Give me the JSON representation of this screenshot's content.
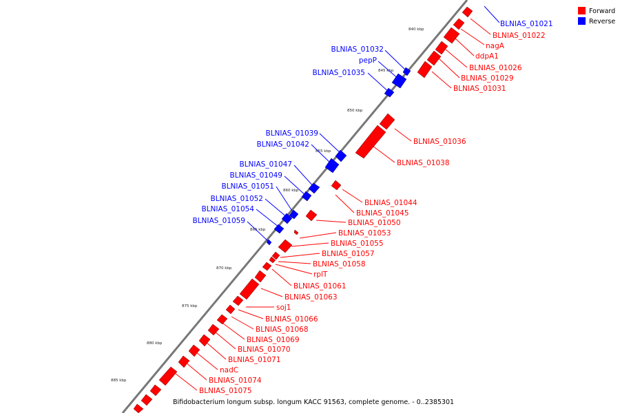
{
  "legend": [
    {
      "label": "Forward",
      "color": "#ff0000"
    },
    {
      "label": "Reverse",
      "color": "#0000ff"
    }
  ],
  "caption": "Bifidobacterium longum subsp. longum KACC 91563, complete genome. - 0..2385301",
  "ticks": [
    "840 kbp",
    "845 kbp",
    "850 kbp",
    "855 kbp",
    "860 kbp",
    "865 kbp",
    "870 kbp",
    "875 kbp",
    "880 kbp",
    "885 kbp"
  ],
  "reverse_labels": [
    "BLNIAS_01021",
    "BLNIAS_01032",
    "pepP",
    "BLNIAS_01035",
    "BLNIAS_01039",
    "BLNIAS_01042",
    "BLNIAS_01047",
    "BLNIAS_01049",
    "BLNIAS_01051",
    "BLNIAS_01052",
    "BLNIAS_01054",
    "BLNIAS_01059"
  ],
  "forward_labels": [
    "BLNIAS_01022",
    "nagA",
    "ddpA1",
    "BLNIAS_01026",
    "BLNIAS_01029",
    "BLNIAS_01031",
    "BLNIAS_01036",
    "BLNIAS_01038",
    "BLNIAS_01044",
    "BLNIAS_01045",
    "BLNIAS_01050",
    "BLNIAS_01053",
    "BLNIAS_01055",
    "BLNIAS_01057",
    "BLNIAS_01058",
    "rplT",
    "BLNIAS_01061",
    "BLNIAS_01063",
    "soj1",
    "BLNIAS_01066",
    "BLNIAS_01068",
    "BLNIAS_01069",
    "BLNIAS_01070",
    "BLNIAS_01071",
    "nadC",
    "BLNIAS_01074",
    "BLNIAS_01075"
  ]
}
